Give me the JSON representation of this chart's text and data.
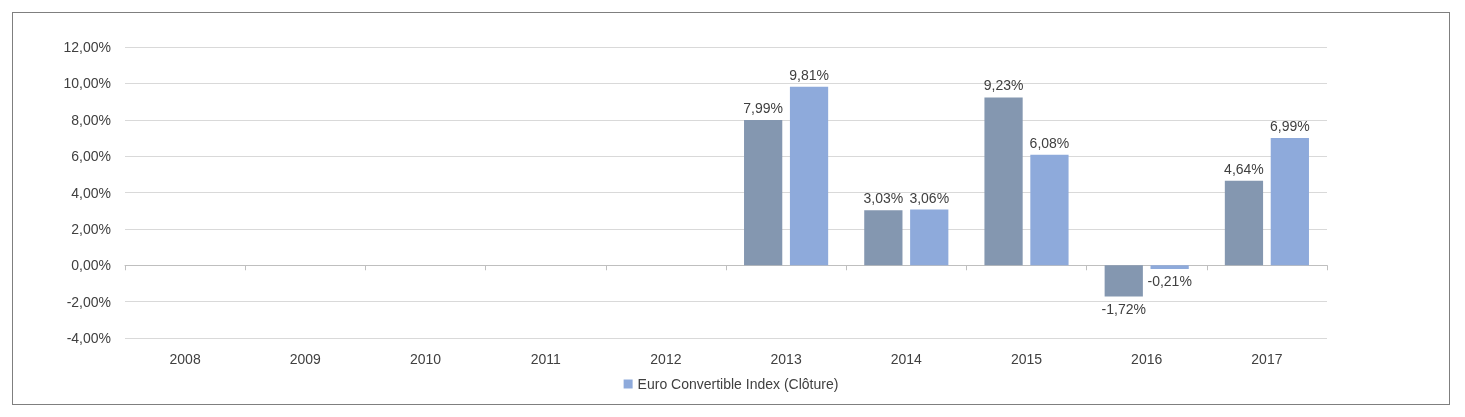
{
  "chart_data": {
    "type": "bar",
    "categories": [
      "2008",
      "2009",
      "2010",
      "2011",
      "2012",
      "2013",
      "2014",
      "2015",
      "2016",
      "2017"
    ],
    "series": [
      {
        "color": "#8497b0",
        "values": [
          null,
          null,
          null,
          null,
          null,
          7.99,
          3.03,
          9.23,
          -1.72,
          4.64
        ],
        "value_labels": [
          null,
          null,
          null,
          null,
          null,
          "7,99%",
          "3,03%",
          "9,23%",
          "-1,72%",
          "4,64%"
        ]
      },
      {
        "name": "Euro Convertible Index (Clôture)",
        "color": "#8eaadb",
        "values": [
          null,
          null,
          null,
          null,
          null,
          9.81,
          3.06,
          6.08,
          -0.21,
          6.99
        ],
        "value_labels": [
          null,
          null,
          null,
          null,
          null,
          "9,81%",
          "3,06%",
          "6,08%",
          "-0,21%",
          "6,99%"
        ]
      }
    ],
    "ylim": [
      -4,
      12
    ],
    "yticks": [
      {
        "value": -4,
        "label": "-4,00%"
      },
      {
        "value": -2,
        "label": "-2,00%"
      },
      {
        "value": 0,
        "label": "0,00%"
      },
      {
        "value": 2,
        "label": "2,00%"
      },
      {
        "value": 4,
        "label": "4,00%"
      },
      {
        "value": 6,
        "label": "6,00%"
      },
      {
        "value": 8,
        "label": "8,00%"
      },
      {
        "value": 10,
        "label": "10,00%"
      },
      {
        "value": 12,
        "label": "12,00%"
      }
    ],
    "grid": "y",
    "legend": "bottom"
  }
}
